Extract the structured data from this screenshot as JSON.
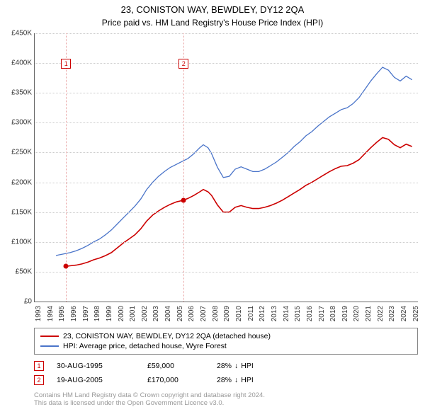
{
  "title_line1": "23, CONISTON WAY, BEWDLEY, DY12 2QA",
  "title_line2": "Price paid vs. HM Land Registry's House Price Index (HPI)",
  "chart": {
    "background_color": "#ffffff",
    "grid_color": "#cccccc",
    "axis_color": "#666666",
    "x_years": [
      1993,
      1994,
      1995,
      1996,
      1997,
      1998,
      1999,
      2000,
      2001,
      2002,
      2003,
      2004,
      2005,
      2006,
      2007,
      2008,
      2009,
      2010,
      2011,
      2012,
      2013,
      2014,
      2015,
      2016,
      2017,
      2018,
      2019,
      2020,
      2021,
      2022,
      2023,
      2024,
      2025
    ],
    "y_ticks": [
      0,
      50000,
      100000,
      150000,
      200000,
      250000,
      300000,
      350000,
      400000,
      450000
    ],
    "y_tick_labels": [
      "£0",
      "£50K",
      "£100K",
      "£150K",
      "£200K",
      "£250K",
      "£300K",
      "£350K",
      "£400K",
      "£450K"
    ],
    "xlim": [
      1993,
      2025.5
    ],
    "ylim": [
      0,
      450000
    ],
    "series": [
      {
        "name": "property",
        "label": "23, CONISTON WAY, BEWDLEY, DY12 2QA (detached house)",
        "color": "#cc0000",
        "line_width": 1.6,
        "points": [
          [
            1995.66,
            59000
          ],
          [
            1996,
            60000
          ],
          [
            1996.5,
            61000
          ],
          [
            1997,
            63000
          ],
          [
            1997.5,
            66000
          ],
          [
            1998,
            70000
          ],
          [
            1998.5,
            73000
          ],
          [
            1999,
            77000
          ],
          [
            1999.5,
            82000
          ],
          [
            2000,
            90000
          ],
          [
            2000.5,
            98000
          ],
          [
            2001,
            105000
          ],
          [
            2001.5,
            112000
          ],
          [
            2002,
            122000
          ],
          [
            2002.5,
            135000
          ],
          [
            2003,
            145000
          ],
          [
            2003.5,
            152000
          ],
          [
            2004,
            158000
          ],
          [
            2004.5,
            163000
          ],
          [
            2005,
            167000
          ],
          [
            2005.63,
            170000
          ],
          [
            2006,
            173000
          ],
          [
            2006.5,
            178000
          ],
          [
            2007,
            184000
          ],
          [
            2007.3,
            188000
          ],
          [
            2007.7,
            184000
          ],
          [
            2008,
            178000
          ],
          [
            2008.5,
            162000
          ],
          [
            2009,
            150000
          ],
          [
            2009.5,
            150000
          ],
          [
            2010,
            158000
          ],
          [
            2010.5,
            161000
          ],
          [
            2011,
            158000
          ],
          [
            2011.5,
            156000
          ],
          [
            2012,
            156000
          ],
          [
            2012.5,
            158000
          ],
          [
            2013,
            161000
          ],
          [
            2013.5,
            165000
          ],
          [
            2014,
            170000
          ],
          [
            2014.5,
            176000
          ],
          [
            2015,
            182000
          ],
          [
            2015.5,
            188000
          ],
          [
            2016,
            195000
          ],
          [
            2016.5,
            200000
          ],
          [
            2017,
            206000
          ],
          [
            2017.5,
            212000
          ],
          [
            2018,
            218000
          ],
          [
            2018.5,
            223000
          ],
          [
            2019,
            227000
          ],
          [
            2019.5,
            228000
          ],
          [
            2020,
            232000
          ],
          [
            2020.5,
            238000
          ],
          [
            2021,
            248000
          ],
          [
            2021.5,
            258000
          ],
          [
            2022,
            267000
          ],
          [
            2022.5,
            275000
          ],
          [
            2023,
            272000
          ],
          [
            2023.5,
            263000
          ],
          [
            2024,
            258000
          ],
          [
            2024.5,
            264000
          ],
          [
            2025,
            260000
          ]
        ]
      },
      {
        "name": "hpi",
        "label": "HPI: Average price, detached house, Wyre Forest",
        "color": "#4a74c9",
        "line_width": 1.3,
        "points": [
          [
            1994.8,
            77000
          ],
          [
            1995,
            78000
          ],
          [
            1995.5,
            80000
          ],
          [
            1996,
            82000
          ],
          [
            1996.5,
            85000
          ],
          [
            1997,
            89000
          ],
          [
            1997.5,
            94000
          ],
          [
            1998,
            100000
          ],
          [
            1998.5,
            105000
          ],
          [
            1999,
            112000
          ],
          [
            1999.5,
            120000
          ],
          [
            2000,
            130000
          ],
          [
            2000.5,
            140000
          ],
          [
            2001,
            150000
          ],
          [
            2001.5,
            160000
          ],
          [
            2002,
            172000
          ],
          [
            2002.5,
            188000
          ],
          [
            2003,
            200000
          ],
          [
            2003.5,
            210000
          ],
          [
            2004,
            218000
          ],
          [
            2004.5,
            225000
          ],
          [
            2005,
            230000
          ],
          [
            2005.5,
            235000
          ],
          [
            2006,
            240000
          ],
          [
            2006.5,
            248000
          ],
          [
            2007,
            258000
          ],
          [
            2007.3,
            263000
          ],
          [
            2007.7,
            258000
          ],
          [
            2008,
            248000
          ],
          [
            2008.5,
            225000
          ],
          [
            2009,
            208000
          ],
          [
            2009.5,
            210000
          ],
          [
            2010,
            222000
          ],
          [
            2010.5,
            226000
          ],
          [
            2011,
            222000
          ],
          [
            2011.5,
            218000
          ],
          [
            2012,
            218000
          ],
          [
            2012.5,
            222000
          ],
          [
            2013,
            228000
          ],
          [
            2013.5,
            234000
          ],
          [
            2014,
            242000
          ],
          [
            2014.5,
            250000
          ],
          [
            2015,
            260000
          ],
          [
            2015.5,
            268000
          ],
          [
            2016,
            278000
          ],
          [
            2016.5,
            285000
          ],
          [
            2017,
            294000
          ],
          [
            2017.5,
            302000
          ],
          [
            2018,
            310000
          ],
          [
            2018.5,
            316000
          ],
          [
            2019,
            322000
          ],
          [
            2019.5,
            325000
          ],
          [
            2020,
            332000
          ],
          [
            2020.5,
            342000
          ],
          [
            2021,
            356000
          ],
          [
            2021.5,
            370000
          ],
          [
            2022,
            382000
          ],
          [
            2022.5,
            393000
          ],
          [
            2023,
            388000
          ],
          [
            2023.5,
            376000
          ],
          [
            2024,
            370000
          ],
          [
            2024.5,
            378000
          ],
          [
            2025,
            372000
          ]
        ]
      }
    ],
    "sale_markers": [
      {
        "num": "1",
        "x": 1995.66,
        "y": 59000,
        "color": "#cc0000",
        "vline_color": "#e8a0a0"
      },
      {
        "num": "2",
        "x": 2005.63,
        "y": 170000,
        "color": "#cc0000",
        "vline_color": "#e8a0a0"
      }
    ]
  },
  "legend": {
    "border_color": "#888888",
    "rows": [
      {
        "color": "#cc0000",
        "label": "23, CONISTON WAY, BEWDLEY, DY12 2QA (detached house)"
      },
      {
        "color": "#4a74c9",
        "label": "HPI: Average price, detached house, Wyre Forest"
      }
    ]
  },
  "sales": [
    {
      "num": "1",
      "color": "#cc0000",
      "date": "30-AUG-1995",
      "price": "£59,000",
      "delta_pct": "28%",
      "delta_dir": "↓",
      "delta_suffix": "HPI"
    },
    {
      "num": "2",
      "color": "#cc0000",
      "date": "19-AUG-2005",
      "price": "£170,000",
      "delta_pct": "28%",
      "delta_dir": "↓",
      "delta_suffix": "HPI"
    }
  ],
  "footer_line1": "Contains HM Land Registry data © Crown copyright and database right 2024.",
  "footer_line2": "This data is licensed under the Open Government Licence v3.0."
}
